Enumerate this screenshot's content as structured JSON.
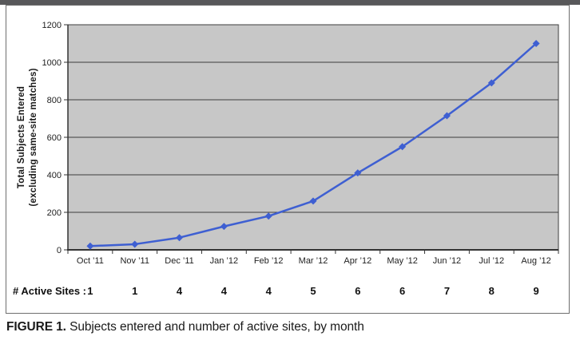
{
  "figure": {
    "caption_prefix": "FIGURE 1.",
    "caption_text": "Subjects entered and number of active sites, by month"
  },
  "chart_data": {
    "type": "line",
    "title": "",
    "xlabel": "",
    "ylabel_lines": [
      "Total Subjects Entered",
      "(excluding same-site matches)"
    ],
    "categories": [
      "Oct ’11",
      "Nov ’11",
      "Dec ’11",
      "Jan ’12",
      "Feb ’12",
      "Mar ’12",
      "Apr ’12",
      "May ’12",
      "Jun ’12",
      "Jul ’12",
      "Aug ’12"
    ],
    "series": [
      {
        "name": "Total Subjects Entered (excluding same-site matches)",
        "values": [
          20,
          30,
          65,
          125,
          180,
          260,
          410,
          550,
          715,
          890,
          1100
        ]
      }
    ],
    "active_sites_label": "# Active Sites :",
    "active_sites": [
      1,
      1,
      4,
      4,
      4,
      5,
      6,
      6,
      7,
      8,
      9
    ],
    "ylim": [
      0,
      1200
    ],
    "yticks": [
      0,
      200,
      400,
      600,
      800,
      1000,
      1200
    ],
    "grid": true,
    "legend_position": "none",
    "colors": {
      "line": "#3e5fd2",
      "marker": "#3e5fd2",
      "plot_bg": "#c7c7c7",
      "gridline": "#3d3d3d",
      "axis": "#333333",
      "text": "#222222",
      "row_text": "#111111",
      "top_bar": "#58585a",
      "frame_border": "#6e6e6e"
    }
  }
}
